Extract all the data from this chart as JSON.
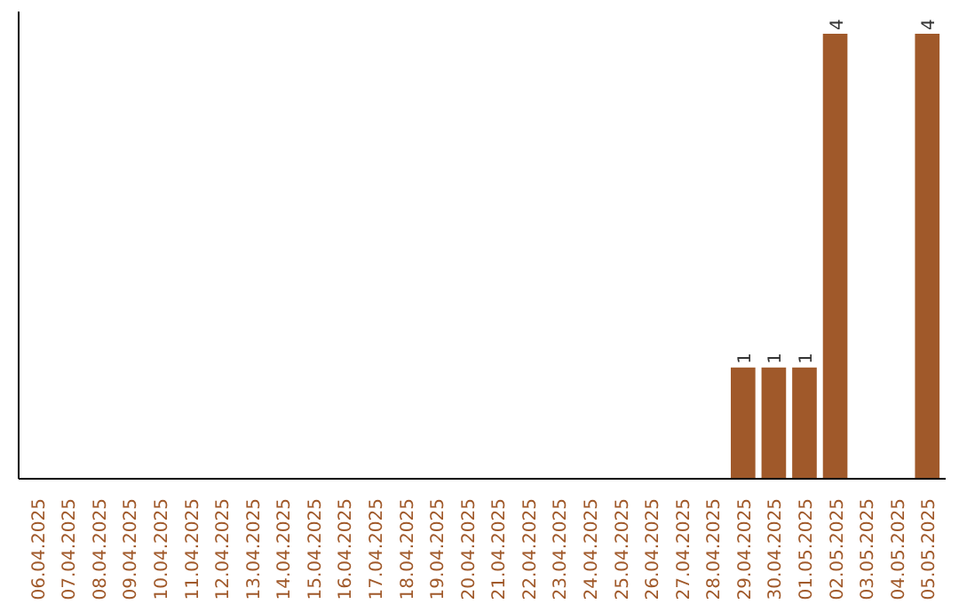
{
  "chart_data": {
    "type": "bar",
    "categories": [
      "06.04.2025",
      "07.04.2025",
      "08.04.2025",
      "09.04.2025",
      "10.04.2025",
      "11.04.2025",
      "12.04.2025",
      "13.04.2025",
      "14.04.2025",
      "15.04.2025",
      "16.04.2025",
      "17.04.2025",
      "18.04.2025",
      "19.04.2025",
      "20.04.2025",
      "21.04.2025",
      "22.04.2025",
      "23.04.2025",
      "24.04.2025",
      "25.04.2025",
      "26.04.2025",
      "27.04.2025",
      "28.04.2025",
      "29.04.2025",
      "30.04.2025",
      "01.05.2025",
      "02.05.2025",
      "03.05.2025",
      "04.05.2025",
      "05.05.2025"
    ],
    "values": [
      null,
      null,
      null,
      null,
      null,
      null,
      null,
      null,
      null,
      null,
      null,
      null,
      null,
      null,
      null,
      null,
      null,
      null,
      null,
      null,
      null,
      null,
      null,
      1,
      1,
      1,
      4,
      null,
      null,
      4
    ],
    "data_labels": true,
    "color": "#a0592a",
    "tick_labels": "x",
    "grid": false
  }
}
